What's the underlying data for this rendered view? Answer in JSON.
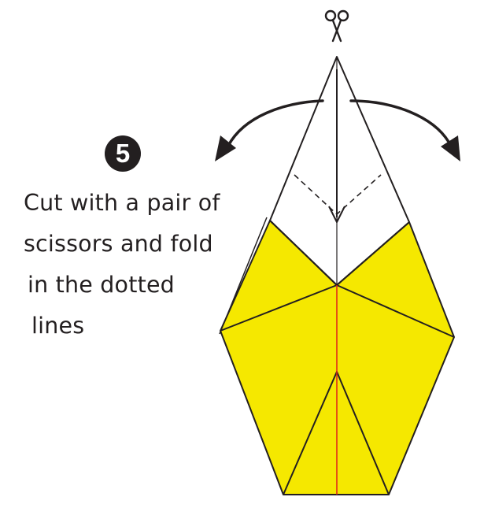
{
  "step": {
    "number": "5"
  },
  "instructions": {
    "lines": [
      "Cut with a pair of",
      "scissors and fold",
      "in the dotted",
      "lines"
    ]
  },
  "colors": {
    "paper_yellow": "#f5e800",
    "outline": "#231f20",
    "center_cut_line": "#e0201b",
    "background": "#ffffff"
  },
  "icons": {
    "top": "scissors-icon",
    "arrows": "curved-fold-arrow-icon"
  }
}
